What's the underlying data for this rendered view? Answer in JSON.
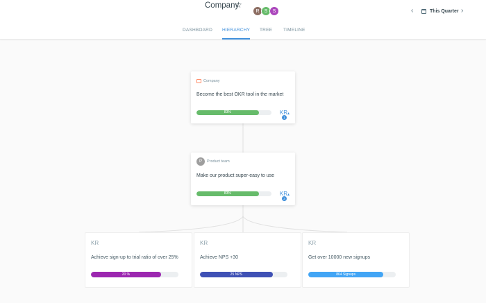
{
  "header": {
    "title": "Company",
    "star_icon": "☆",
    "avatars": [
      {
        "initial": "R",
        "color": "#8d6e63"
      },
      {
        "initial": "S",
        "color": "#66bb6a"
      },
      {
        "initial": "S",
        "color": "#ab47bc"
      }
    ],
    "period_label": "This Quarter",
    "chevron_left": "‹",
    "chevron_right": "›"
  },
  "tabs": [
    {
      "label": "DASHBOARD",
      "active": false
    },
    {
      "label": "HIERARCHY",
      "active": true
    },
    {
      "label": "TREE",
      "active": false
    },
    {
      "label": "TIMELINE",
      "active": false
    }
  ],
  "objectives": [
    {
      "owner": "Company",
      "owner_icon": "briefcase-icon",
      "title": "Become the best OKR tool in the market",
      "progress_label": "83%",
      "progress": 0.83,
      "bar_color": "#66bb6a",
      "kr_toggle": "KR",
      "kr_count": "1"
    },
    {
      "owner": "Product team",
      "owner_initial": "P",
      "title": "Make our product super-easy to use",
      "progress_label": "83%",
      "progress": 0.83,
      "bar_color": "#66bb6a",
      "kr_toggle": "KR",
      "kr_count": "3"
    }
  ],
  "key_results": [
    {
      "label": "KR",
      "title": "Achieve sign-up to trial ratio of over 25%",
      "progress_label": "20 %",
      "progress": 0.8,
      "bar_color": "#9c27b0"
    },
    {
      "label": "KR",
      "title": "Achieve NPS +30",
      "progress_label": "25 NPS",
      "progress": 0.83,
      "bar_color": "#3f51b5"
    },
    {
      "label": "KR",
      "title": "Get over 10000 new signups",
      "progress_label": "864 Signups",
      "progress": 0.86,
      "bar_color": "#42a5f5"
    }
  ],
  "colors": {
    "accent": "#3f8fdb"
  }
}
